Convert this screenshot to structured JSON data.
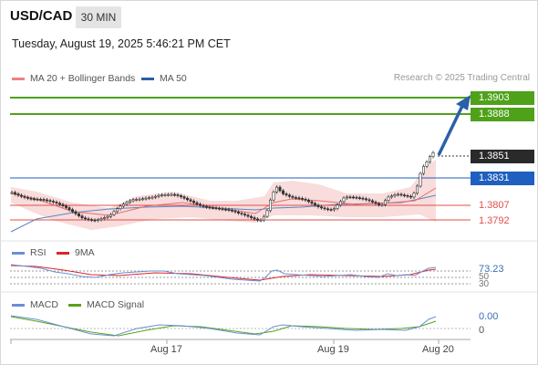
{
  "header": {
    "symbol": "USD/CAD",
    "timeframe": "30 MIN",
    "datetime": "Tuesday, August 19, 2025 5:46:21 PM CET"
  },
  "legend": {
    "ma20": "MA 20 + Bollinger Bands",
    "ma50": "MA 50",
    "credit": "Research © 2025 Trading Central"
  },
  "levels": {
    "r2": "1.3903",
    "r1": "1.3888",
    "last": "1.3851",
    "pivot": "1.3831",
    "s1": "1.3807",
    "s2": "1.3792"
  },
  "rsi": {
    "label": "RSI",
    "ma_label": "9MA",
    "value": "73.23",
    "level_hi": "50",
    "level_lo": "30"
  },
  "macd": {
    "label": "MACD",
    "signal_label": "MACD Signal",
    "value": "0.00",
    "zero": "0"
  },
  "xaxis": [
    "Aug 17",
    "Aug 19",
    "Aug 20"
  ],
  "colors": {
    "resistance": "#4fa11a",
    "pivot": "#1f5fbf",
    "support": "#e0504a",
    "last": "#2a2a2a",
    "arrow": "#2b5fa8",
    "ma20": "#f08080",
    "ma50": "#2b5fa8",
    "rsi": "#6b8fd6",
    "rsi_ma": "#d9262a",
    "macd": "#6b8fd6",
    "macd_signal": "#58a21b"
  }
}
